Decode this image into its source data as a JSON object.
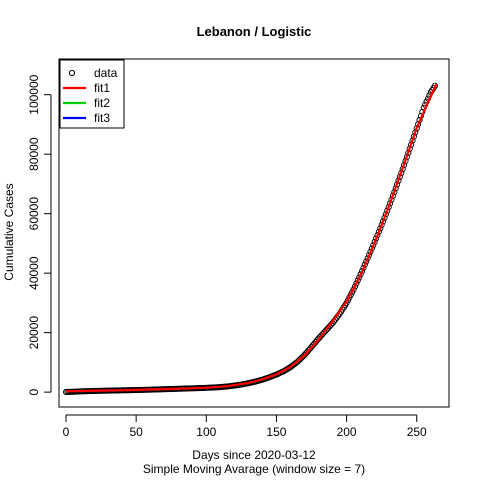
{
  "chart_data": {
    "type": "scatter",
    "title": "Lebanon / Logistic",
    "xlabel": "Days since 2020-03-12",
    "xlabel2": "Simple Moving Avarage (window size = 7)",
    "ylabel": "Cumulative Cases",
    "xlim": [
      -5,
      273
    ],
    "ylim": [
      -5000,
      112000
    ],
    "xticks": [
      0,
      50,
      100,
      150,
      200,
      250
    ],
    "xtick_labels": [
      "0",
      "50",
      "100",
      "150",
      "200",
      "250"
    ],
    "yticks": [
      0,
      20000,
      40000,
      60000,
      80000,
      100000
    ],
    "ytick_labels": [
      "0",
      "20000",
      "40000",
      "60000",
      "80000",
      "100000"
    ],
    "legend": {
      "position": "top-left",
      "entries": [
        {
          "label": "data",
          "type": "point",
          "color": "#000000"
        },
        {
          "label": "fit1",
          "type": "line",
          "color": "#ff0000"
        },
        {
          "label": "fit2",
          "type": "line",
          "color": "#00cd00"
        },
        {
          "label": "fit3",
          "type": "line",
          "color": "#0000ff"
        }
      ]
    },
    "data_points": [
      [
        0,
        50
      ],
      [
        5,
        120
      ],
      [
        10,
        250
      ],
      [
        15,
        320
      ],
      [
        20,
        400
      ],
      [
        25,
        450
      ],
      [
        30,
        500
      ],
      [
        35,
        550
      ],
      [
        40,
        600
      ],
      [
        45,
        650
      ],
      [
        50,
        700
      ],
      [
        55,
        760
      ],
      [
        60,
        830
      ],
      [
        65,
        900
      ],
      [
        70,
        980
      ],
      [
        75,
        1050
      ],
      [
        80,
        1130
      ],
      [
        85,
        1200
      ],
      [
        90,
        1280
      ],
      [
        95,
        1350
      ],
      [
        100,
        1450
      ],
      [
        105,
        1550
      ],
      [
        110,
        1700
      ],
      [
        115,
        1900
      ],
      [
        120,
        2200
      ],
      [
        125,
        2550
      ],
      [
        130,
        3000
      ],
      [
        135,
        3550
      ],
      [
        140,
        4200
      ],
      [
        145,
        5000
      ],
      [
        150,
        5900
      ],
      [
        155,
        7000
      ],
      [
        160,
        8400
      ],
      [
        165,
        10200
      ],
      [
        170,
        12500
      ],
      [
        175,
        15200
      ],
      [
        180,
        18000
      ],
      [
        185,
        20600
      ],
      [
        190,
        23200
      ],
      [
        195,
        26300
      ],
      [
        200,
        30000
      ],
      [
        205,
        34500
      ],
      [
        210,
        39600
      ],
      [
        215,
        45000
      ],
      [
        220,
        50500
      ],
      [
        225,
        56200
      ],
      [
        230,
        62200
      ],
      [
        235,
        68500
      ],
      [
        240,
        75000
      ],
      [
        245,
        81800
      ],
      [
        250,
        88700
      ],
      [
        255,
        95600
      ],
      [
        260,
        100800
      ],
      [
        263,
        103000
      ]
    ],
    "fit1": [
      [
        0,
        300
      ],
      [
        25,
        500
      ],
      [
        50,
        750
      ],
      [
        75,
        1050
      ],
      [
        100,
        1500
      ],
      [
        115,
        2000
      ],
      [
        130,
        3100
      ],
      [
        140,
        4300
      ],
      [
        150,
        6000
      ],
      [
        160,
        8500
      ],
      [
        170,
        12300
      ],
      [
        180,
        17600
      ],
      [
        190,
        23800
      ],
      [
        200,
        30500
      ],
      [
        210,
        39300
      ],
      [
        220,
        50200
      ],
      [
        230,
        62300
      ],
      [
        240,
        75300
      ],
      [
        250,
        88800
      ],
      [
        260,
        99500
      ],
      [
        264,
        103500
      ]
    ]
  }
}
